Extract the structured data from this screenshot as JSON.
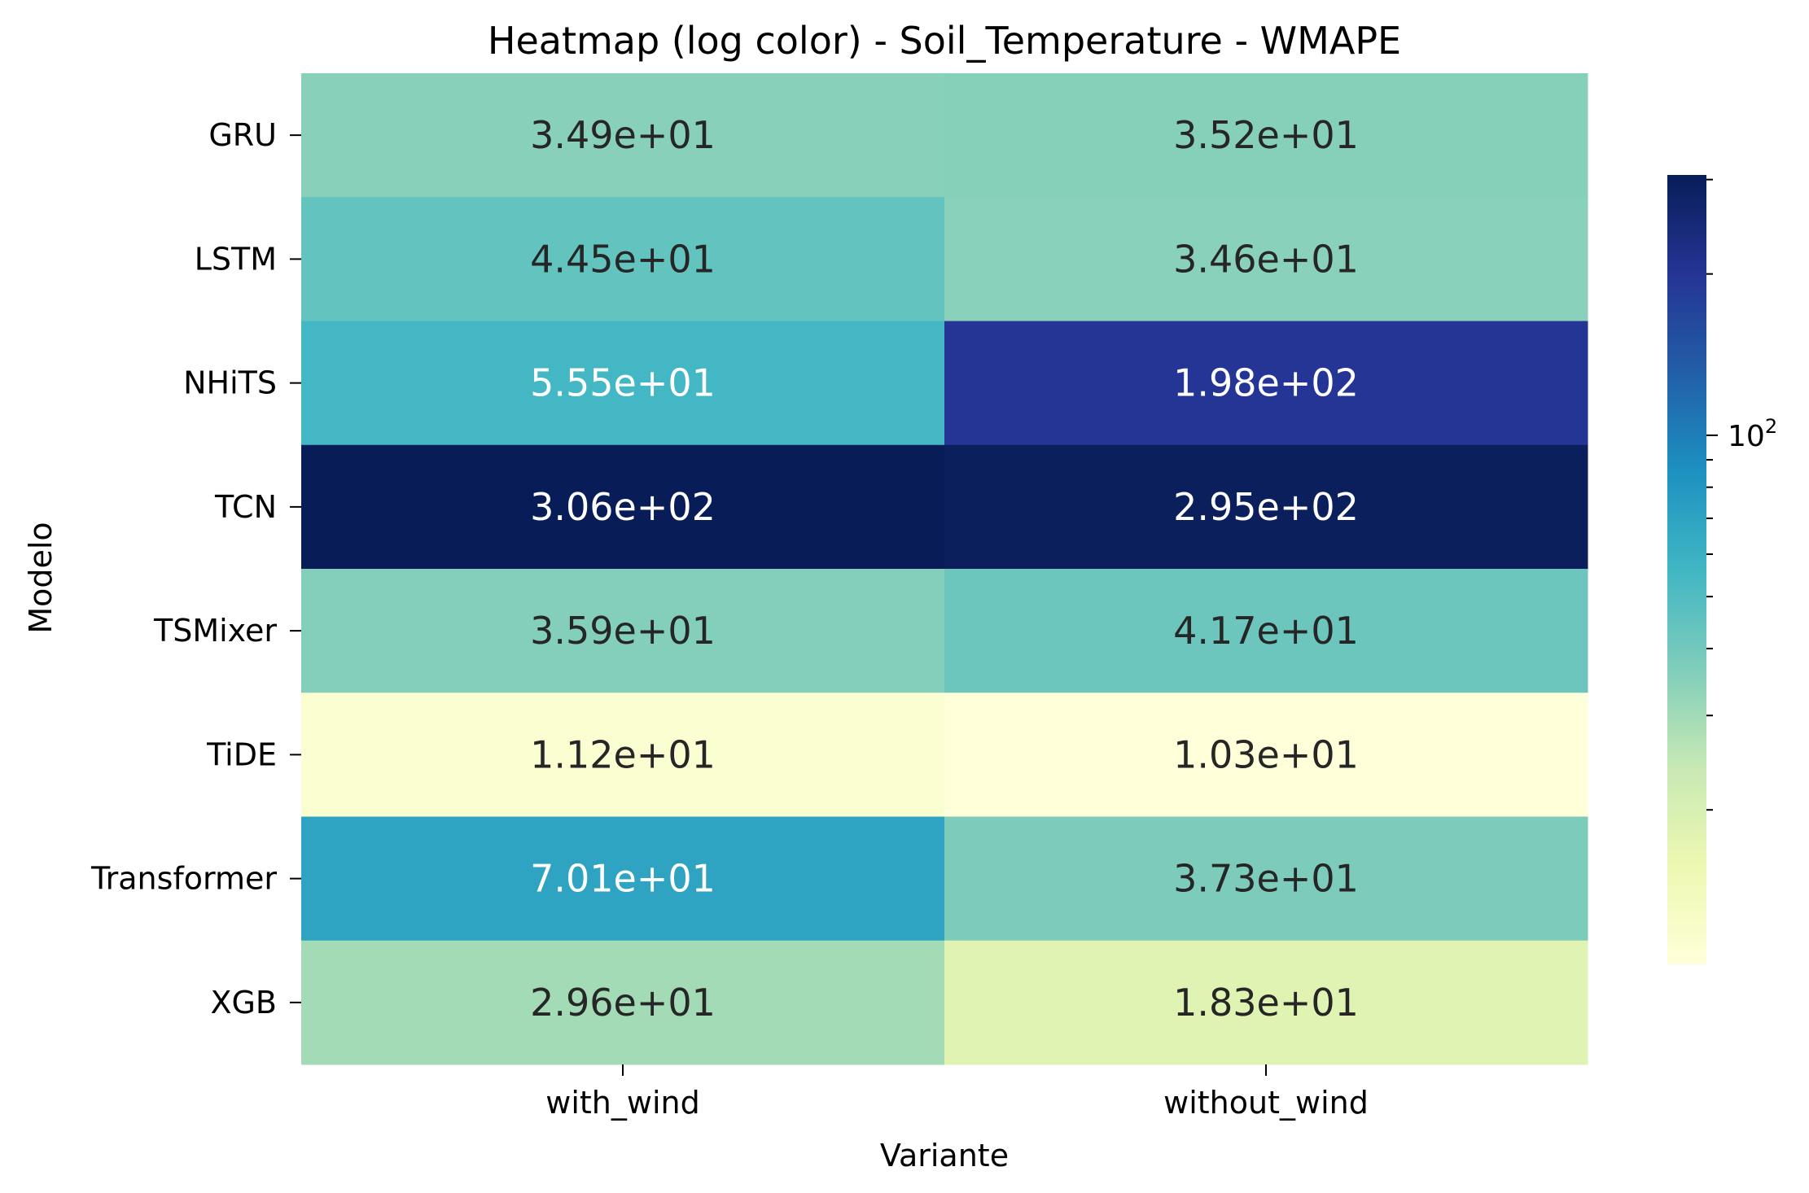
{
  "chart_data": {
    "type": "heatmap",
    "title": "Heatmap (log color) - Soil_Temperature - WMAPE",
    "xlabel": "Variante",
    "ylabel": "Modelo",
    "columns": [
      "with_wind",
      "without_wind"
    ],
    "rows": [
      "GRU",
      "LSTM",
      "NHiTS",
      "TCN",
      "TSMixer",
      "TiDE",
      "Transformer",
      "XGB"
    ],
    "values": [
      [
        34.9,
        35.2
      ],
      [
        44.5,
        34.6
      ],
      [
        55.5,
        198
      ],
      [
        306,
        295
      ],
      [
        35.9,
        41.7
      ],
      [
        11.2,
        10.3
      ],
      [
        70.1,
        37.3
      ],
      [
        29.6,
        18.3
      ]
    ],
    "cell_labels": [
      [
        "3.49e+01",
        "3.52e+01"
      ],
      [
        "4.45e+01",
        "3.46e+01"
      ],
      [
        "5.55e+01",
        "1.98e+02"
      ],
      [
        "3.06e+02",
        "2.95e+02"
      ],
      [
        "3.59e+01",
        "4.17e+01"
      ],
      [
        "1.12e+01",
        "1.03e+01"
      ],
      [
        "7.01e+01",
        "3.73e+01"
      ],
      [
        "2.96e+01",
        "1.83e+01"
      ]
    ],
    "colorscale": {
      "name": "YlGnBu",
      "scale": "log",
      "range": [
        10.3,
        306
      ],
      "stops": [
        "#ffffd9",
        "#edf8b1",
        "#c7e9b4",
        "#7fcdbb",
        "#41b6c4",
        "#1d91c0",
        "#225ea8",
        "#253494",
        "#081d58"
      ],
      "tick_label_base": "10",
      "tick_label_exp": "2"
    },
    "grid": false,
    "colorbar": "right"
  }
}
